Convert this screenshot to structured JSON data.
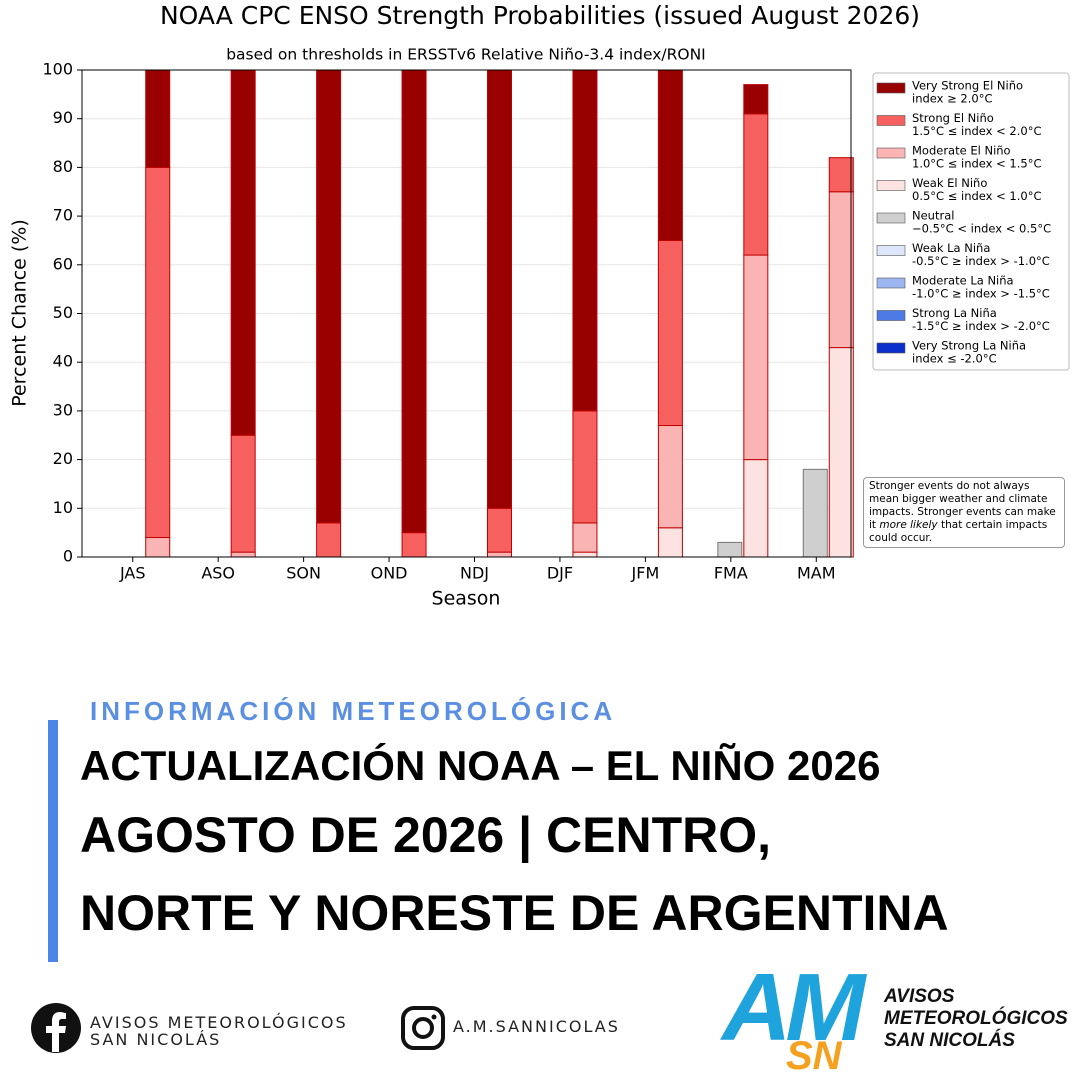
{
  "chart_data": {
    "type": "stacked_bar",
    "title": "NOAA CPC ENSO Strength Probabilities (issued August 2026)",
    "subtitle": "based on thresholds in ERSSTv6 Relative Niño-3.4 index/RONI",
    "x_label": "Season",
    "y_label": "Percent Chance (%)",
    "categories": [
      "JAS",
      "ASO",
      "SON",
      "OND",
      "NDJ",
      "DJF",
      "JFM",
      "FMA",
      "MAM"
    ],
    "ylim": [
      0,
      100
    ],
    "yticks": [
      0,
      10,
      20,
      30,
      40,
      50,
      60,
      70,
      80,
      90,
      100
    ],
    "grid": true,
    "legend_position": "right",
    "series": [
      {
        "name": "Weak El Niño",
        "range": "0.5°C ≤ index < 1.0°C",
        "color": "#fde2e2",
        "stack": "right",
        "values": [
          0,
          0,
          0,
          0,
          0,
          1,
          6,
          20,
          43
        ]
      },
      {
        "name": "Moderate El Niño",
        "range": "1.0°C ≤ index < 1.5°C",
        "color": "#fbb4b4",
        "stack": "right",
        "values": [
          4,
          1,
          0,
          0,
          1,
          6,
          21,
          42,
          32
        ]
      },
      {
        "name": "Strong El Niño",
        "range": "1.5°C ≤ index < 2.0°C",
        "color": "#f6615f",
        "stack": "right",
        "values": [
          76,
          24,
          7,
          5,
          9,
          23,
          38,
          29,
          7
        ]
      },
      {
        "name": "Very Strong El Niño",
        "range": "index ≥ 2.0°C",
        "color": "#990000",
        "stack": "right",
        "values": [
          20,
          75,
          93,
          95,
          90,
          70,
          35,
          6,
          0
        ]
      },
      {
        "name": "Neutral",
        "range": "−0.5°C < index < 0.5°C",
        "color": "#cfcfcf",
        "stack": "left",
        "values": [
          0,
          0,
          0,
          0,
          0,
          0,
          0,
          3,
          18
        ]
      },
      {
        "name": "Weak La Niña",
        "range": "-0.5°C ≥ index > -1.0°C",
        "color": "#dde6fb",
        "stack": "left",
        "values": [
          0,
          0,
          0,
          0,
          0,
          0,
          0,
          0,
          0
        ]
      },
      {
        "name": "Moderate La Niña",
        "range": "-1.0°C ≥ index > -1.5°C",
        "color": "#9db6f1",
        "stack": "left",
        "values": [
          0,
          0,
          0,
          0,
          0,
          0,
          0,
          0,
          0
        ]
      },
      {
        "name": "Strong La Niña",
        "range": "-1.5°C ≥ index > -2.0°C",
        "color": "#4d7be6",
        "stack": "left",
        "values": [
          0,
          0,
          0,
          0,
          0,
          0,
          0,
          0,
          0
        ]
      },
      {
        "name": "Very Strong La Niña",
        "range": "index ≤ -2.0°C",
        "color": "#0a2fcc",
        "stack": "left",
        "values": [
          0,
          0,
          0,
          0,
          0,
          0,
          0,
          0,
          0
        ]
      }
    ],
    "legend_order": [
      3,
      2,
      1,
      0,
      4,
      5,
      6,
      7,
      8
    ],
    "annotation": [
      "Stronger events do not always mean bigger weather and climate impacts. Stronger events can make it ",
      "more likely",
      " that certain impacts could occur."
    ]
  },
  "post": {
    "kicker": "INFORMACIÓN METEOROLÓGICA",
    "headline": [
      "ACTUALIZACIÓN NOAA – EL NIÑO 2026",
      "AGOSTO DE 2026 | CENTRO,",
      "NORTE Y NORESTE DE ARGENTINA"
    ],
    "facebook": [
      "AVISOS METEOROLÓGICOS",
      "SAN NICOLÁS"
    ],
    "instagram": "A.M.SANNICOLAS",
    "logo": {
      "mark": "AM",
      "sub": "SN",
      "text": [
        "AVISOS",
        "METEOROLÓGICOS",
        "SAN NICOLÁS"
      ]
    }
  }
}
